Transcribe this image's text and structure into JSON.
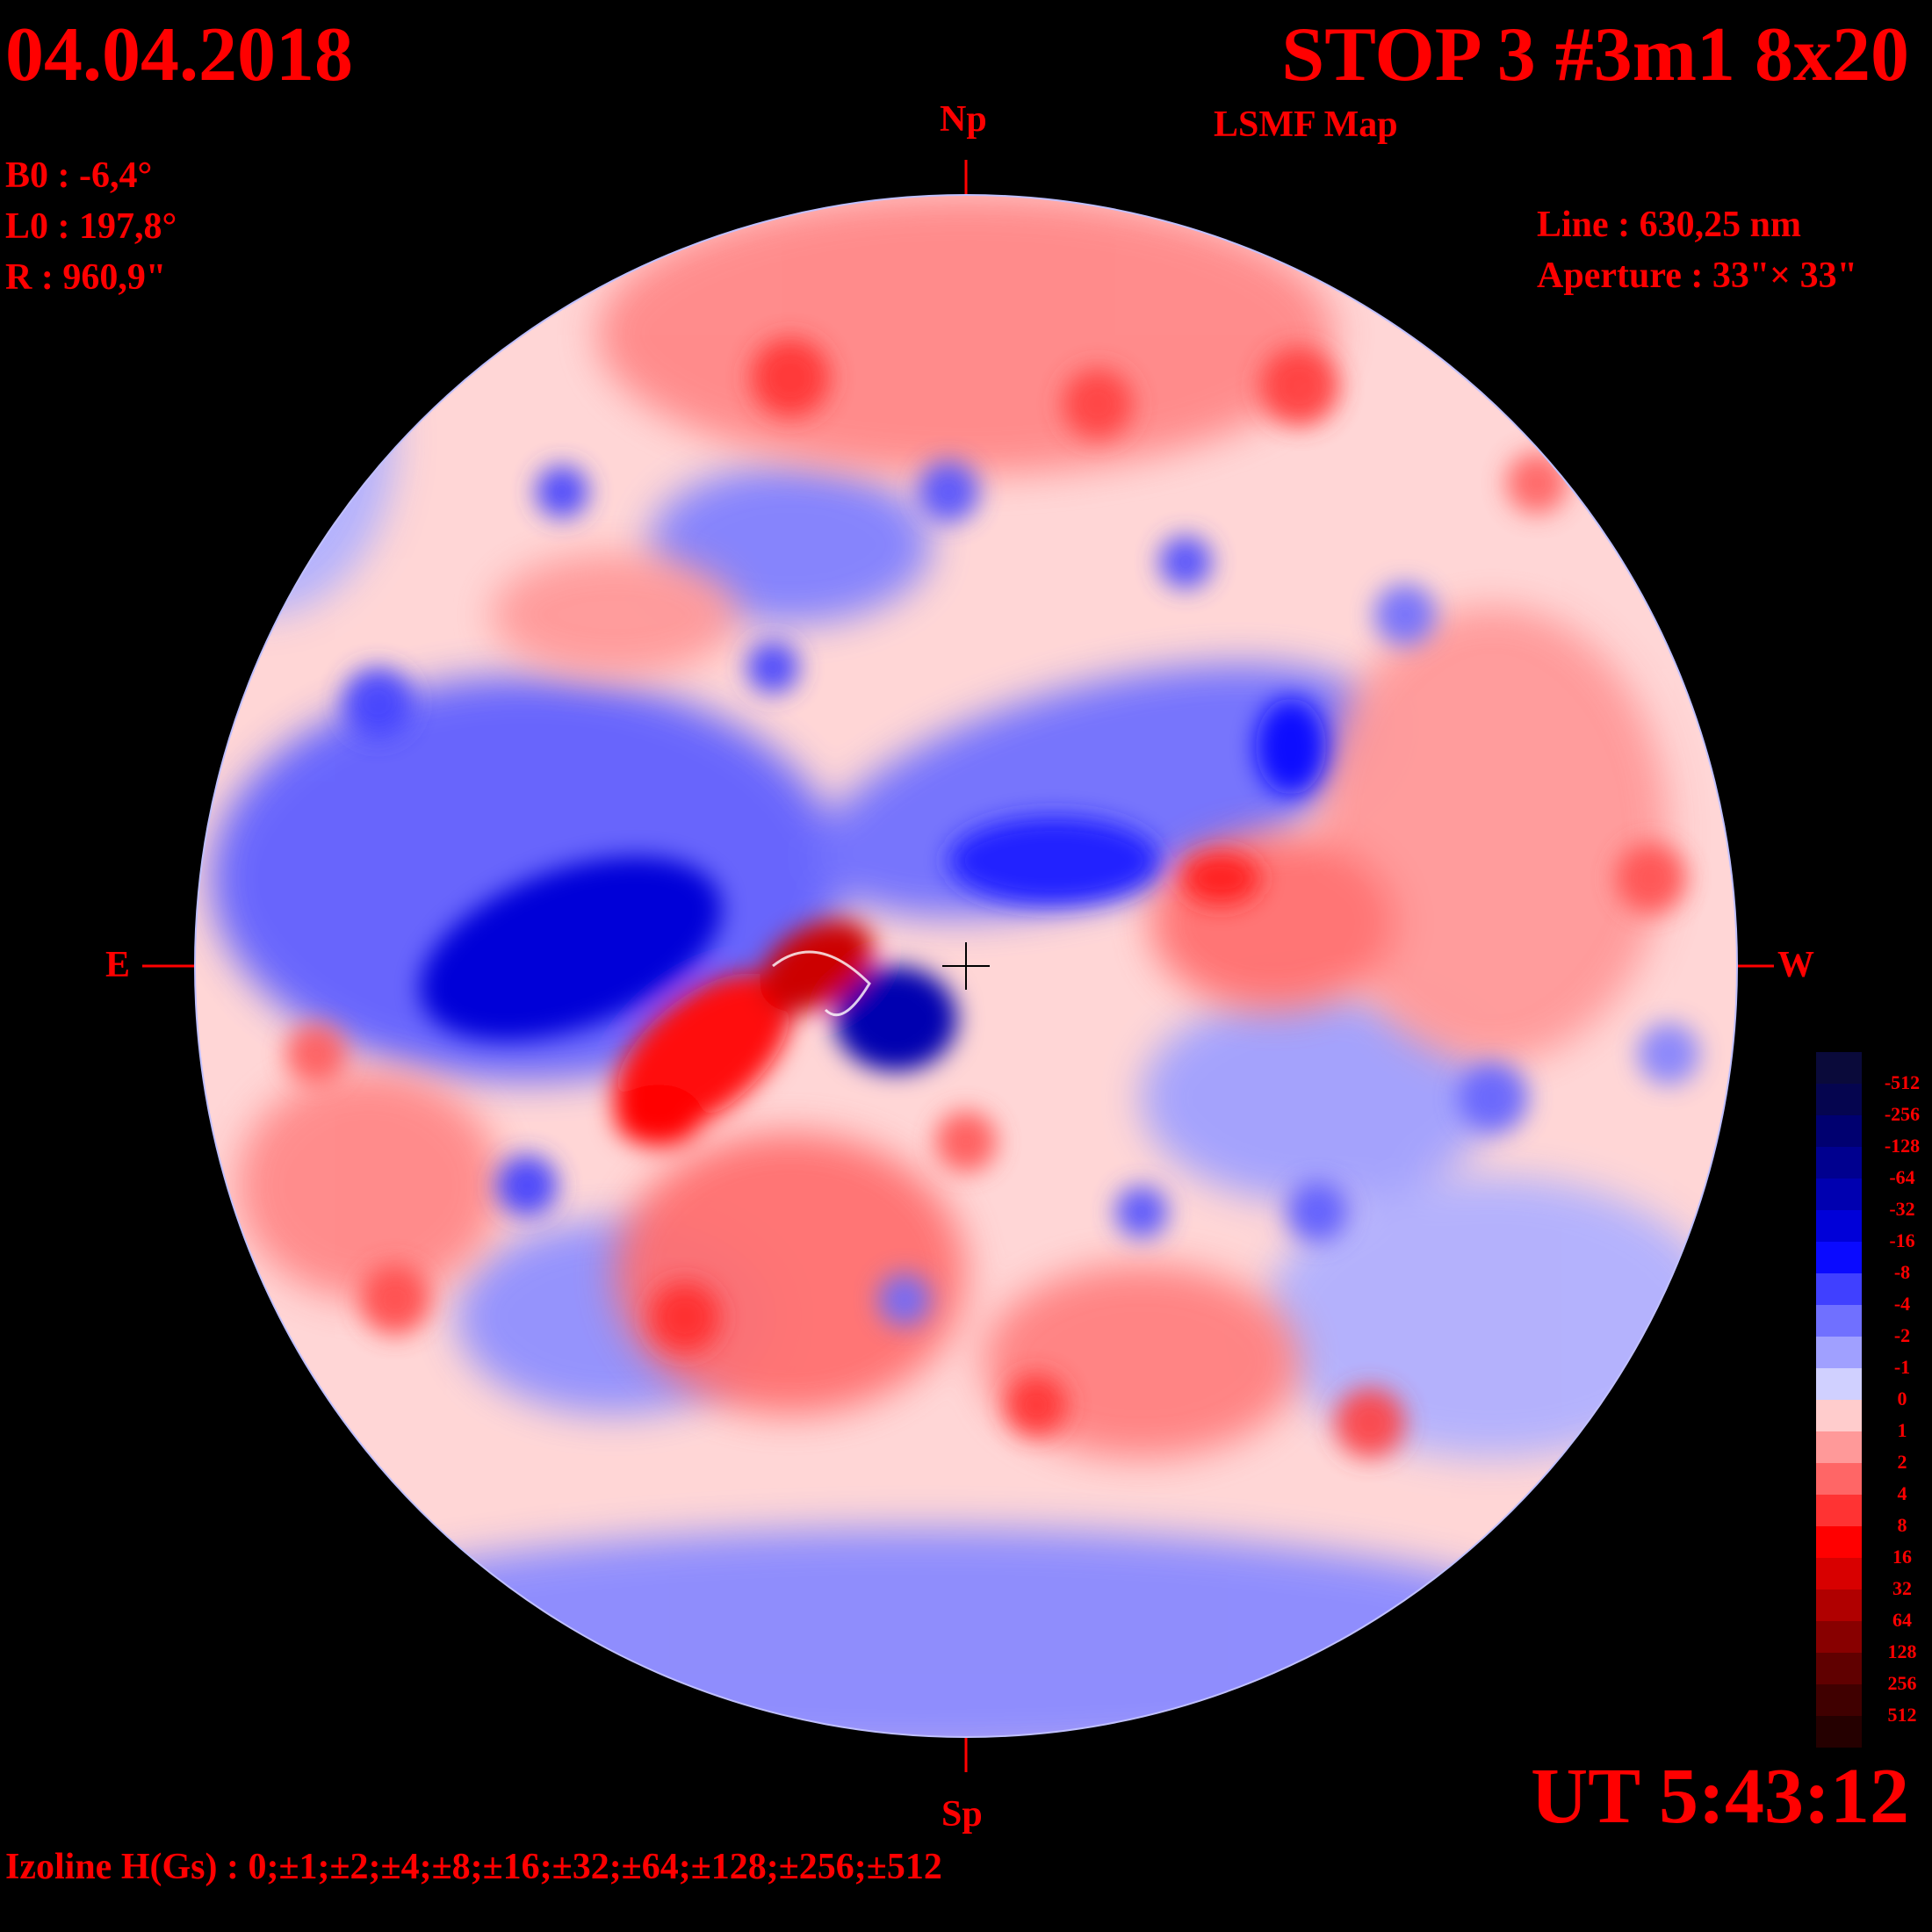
{
  "header": {
    "date": "04.04.2018",
    "title": "STOP 3 #3m1 8x20",
    "subtitle": "LSMF  Map"
  },
  "params": {
    "b0": "B0 : -6,4°",
    "l0": "L0 : 197,8°",
    "r": "R  : 960,9\""
  },
  "instrument": {
    "line": "Line :  630,25 nm",
    "aperture": "Aperture : 33\"× 33\""
  },
  "directions": {
    "north": "Np",
    "south": "Sp",
    "east": "E",
    "west": "W"
  },
  "time": "UT 5:43:12",
  "izoline": "Izoline H(Gs) : 0;±1;±2;±4;±8;±16;±32;±64;±128;±256;±512",
  "legend": [
    {
      "label": "-512",
      "color": "#0a0a3a"
    },
    {
      "label": "-256",
      "color": "#05054f"
    },
    {
      "label": "-128",
      "color": "#000070"
    },
    {
      "label": "-64",
      "color": "#00008f"
    },
    {
      "label": "-32",
      "color": "#0000b0"
    },
    {
      "label": "-16",
      "color": "#0000d8"
    },
    {
      "label": "-8",
      "color": "#0a0aff"
    },
    {
      "label": "-4",
      "color": "#4040ff"
    },
    {
      "label": "-2",
      "color": "#7070ff"
    },
    {
      "label": "-1",
      "color": "#a0a0ff"
    },
    {
      "label": "0",
      "color": "#d0d0ff"
    },
    {
      "label": "1",
      "color": "#ffcccc"
    },
    {
      "label": "2",
      "color": "#ff9999"
    },
    {
      "label": "4",
      "color": "#ff6666"
    },
    {
      "label": "8",
      "color": "#ff3333"
    },
    {
      "label": "16",
      "color": "#ff0000"
    },
    {
      "label": "32",
      "color": "#d80000"
    },
    {
      "label": "64",
      "color": "#b00000"
    },
    {
      "label": "128",
      "color": "#880000"
    },
    {
      "label": "256",
      "color": "#600000"
    },
    {
      "label": "512",
      "color": "#400000"
    },
    {
      "label": "",
      "color": "#250000"
    }
  ],
  "colors": {
    "text": "#ff0000",
    "disk_base": "#ffd6d6",
    "positive": "#ff3333",
    "negative": "#2020ff"
  }
}
